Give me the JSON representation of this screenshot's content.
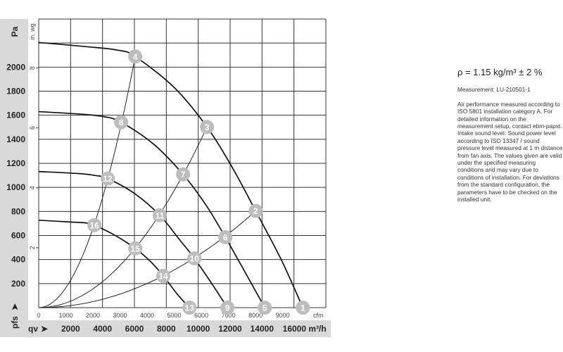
{
  "chart_data": {
    "type": "line",
    "xlabel": "qv",
    "ylabel": "pfs",
    "x_unit": "m³/h",
    "x_unit_secondary": "cfm",
    "y_unit": "Pa",
    "y_unit_secondary": "in. wg",
    "xlim": [
      0,
      18000
    ],
    "ylim": [
      0,
      2400
    ],
    "grid": true,
    "x_ticks": [
      "2000",
      "4000",
      "6000",
      "8000",
      "10000",
      "12000",
      "14000",
      "16000 m³/h"
    ],
    "x_ticks_values": [
      2000,
      4000,
      6000,
      8000,
      10000,
      12000,
      14000,
      16000
    ],
    "cfm_ticks": [
      "0",
      "1000",
      "2000",
      "3000",
      "4000",
      "5000",
      "6000",
      "7000",
      "8000",
      "9000"
    ],
    "y_ticks": [
      "200",
      "400",
      "600",
      "800",
      "1000",
      "1200",
      "1400",
      "1600",
      "1800",
      "2000"
    ],
    "y_ticks_values": [
      200,
      400,
      600,
      800,
      1000,
      1200,
      1400,
      1600,
      1800,
      2000
    ],
    "inwg_ticks": [
      "2",
      "4",
      "6",
      "8"
    ],
    "fan_curves": [
      {
        "points": [
          [
            0,
            2205
          ],
          [
            3000,
            2170
          ],
          [
            5000,
            2140
          ],
          [
            6050,
            2088
          ],
          [
            8500,
            1830
          ],
          [
            10550,
            1502
          ],
          [
            12200,
            1150
          ],
          [
            13600,
            804
          ],
          [
            15200,
            400
          ],
          [
            16560,
            0
          ]
        ],
        "labels": [
          {
            "n": "4",
            "q": 6050,
            "p": 2088
          },
          {
            "n": "3",
            "q": 10550,
            "p": 1502
          },
          {
            "n": "2",
            "q": 13600,
            "p": 804
          },
          {
            "n": "1",
            "q": 16560,
            "p": 0
          }
        ]
      },
      {
        "points": [
          [
            0,
            1630
          ],
          [
            2500,
            1610
          ],
          [
            4000,
            1590
          ],
          [
            5165,
            1542
          ],
          [
            7200,
            1360
          ],
          [
            9050,
            1108
          ],
          [
            10500,
            850
          ],
          [
            11700,
            586
          ],
          [
            13000,
            280
          ],
          [
            14170,
            0
          ]
        ],
        "labels": [
          {
            "n": "8",
            "q": 5165,
            "p": 1542
          },
          {
            "n": "7",
            "q": 9050,
            "p": 1108
          },
          {
            "n": "6",
            "q": 11700,
            "p": 586
          },
          {
            "n": "5",
            "q": 14170,
            "p": 0
          }
        ]
      },
      {
        "points": [
          [
            0,
            1132
          ],
          [
            2500,
            1115
          ],
          [
            3500,
            1100
          ],
          [
            4330,
            1073
          ],
          [
            6000,
            950
          ],
          [
            7590,
            768
          ],
          [
            8800,
            570
          ],
          [
            9760,
            410
          ],
          [
            10900,
            190
          ],
          [
            11830,
            0
          ]
        ],
        "labels": [
          {
            "n": "12",
            "q": 4330,
            "p": 1073
          },
          {
            "n": "11",
            "q": 7590,
            "p": 768
          },
          {
            "n": "10",
            "q": 9760,
            "p": 410
          },
          {
            "n": "9",
            "q": 11830,
            "p": 0
          }
        ]
      },
      {
        "points": [
          [
            0,
            727
          ],
          [
            2000,
            712
          ],
          [
            3000,
            704
          ],
          [
            3490,
            686
          ],
          [
            4800,
            600
          ],
          [
            6050,
            493
          ],
          [
            7000,
            385
          ],
          [
            7810,
            264
          ],
          [
            8700,
            110
          ],
          [
            9450,
            0
          ]
        ],
        "labels": [
          {
            "n": "16",
            "q": 3490,
            "p": 686
          },
          {
            "n": "15",
            "q": 6050,
            "p": 493
          },
          {
            "n": "14",
            "q": 7810,
            "p": 264
          },
          {
            "n": "13",
            "q": 9450,
            "p": 0
          }
        ]
      }
    ],
    "system_curves": [
      {
        "through": [
          "16",
          "12",
          "8",
          "4"
        ],
        "end": [
          6050,
          2088
        ]
      },
      {
        "through": [
          "15",
          "11",
          "7",
          "3"
        ],
        "end": [
          10550,
          1502
        ]
      },
      {
        "through": [
          "14",
          "10",
          "6",
          "2"
        ],
        "end": [
          13600,
          804
        ]
      }
    ]
  },
  "axis": {
    "pa_label": "Pa",
    "inwg_label": "in. wg",
    "pfs_label": "pfs",
    "qv_label": "qv",
    "cfm_label": "cfm"
  },
  "notes": {
    "density": "ρ = 1.15 kg/m³ ± 2 %",
    "measurement": "Measurement: LU-210501-1",
    "text": "Air performance measured according to ISO 5801 installation category A. For detailed information on the measurement setup, contact ebm-papst. Intake sound level: Sound power level according to ISO 13347 / sound pressure level measured at 1 m distance from fan axis. The values given are valid under the specified measuring conditions and may vary due to conditions of installation. For deviations from the standard configuration, the parameters have to be checked on the installed unit."
  },
  "colors": {
    "curve": "#111111",
    "grid": "#333333",
    "marker": "#bdbdbd",
    "panel": "#d9d9d9"
  }
}
